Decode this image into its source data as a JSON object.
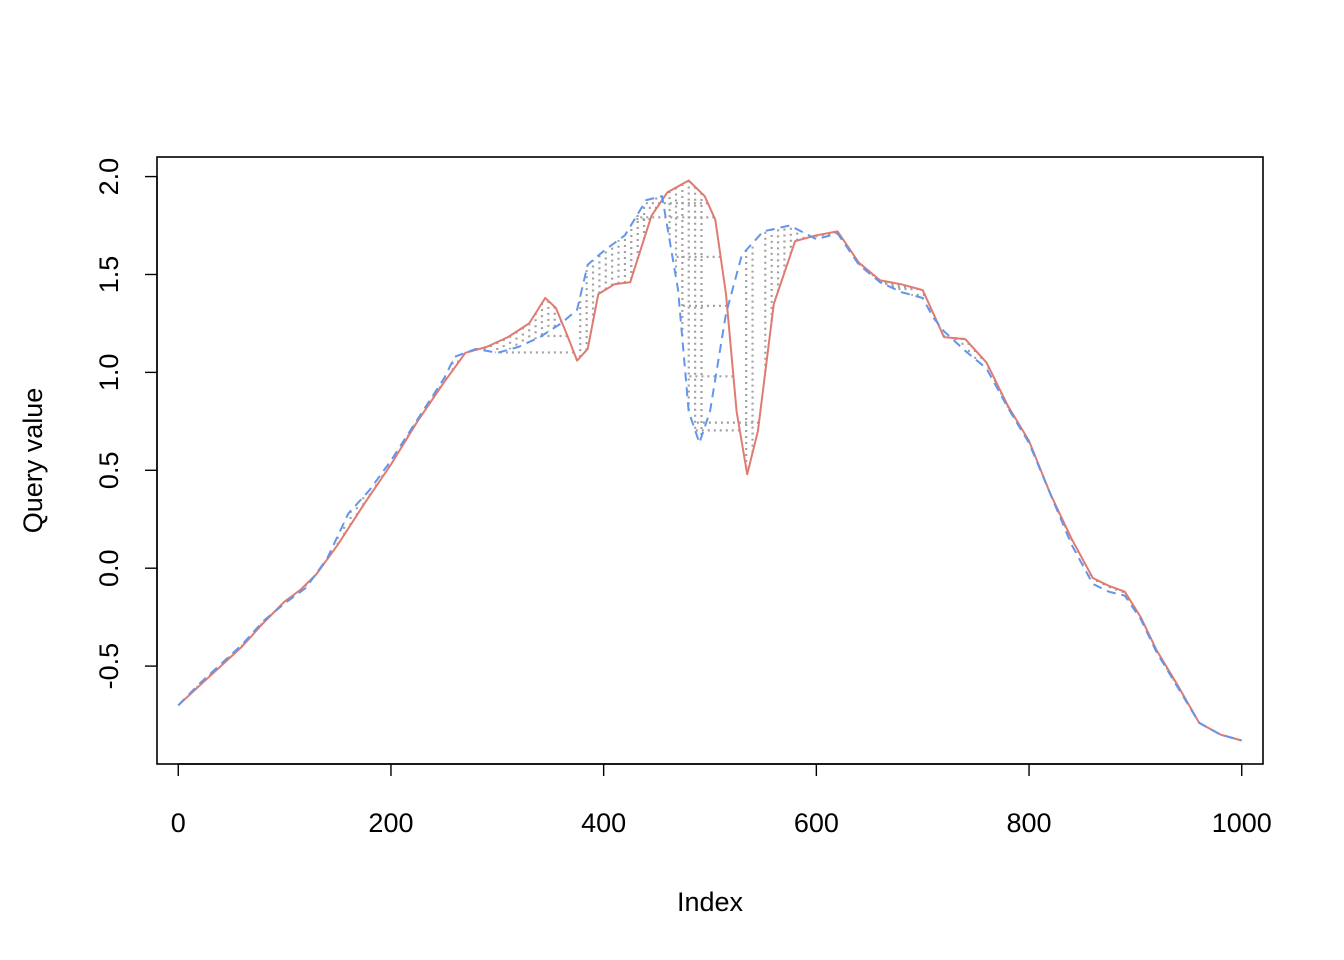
{
  "chart_data": {
    "type": "line",
    "title": "",
    "xlabel": "Index",
    "ylabel": "Query value",
    "xlim": [
      -20,
      1020
    ],
    "ylim": [
      -1.0,
      2.1
    ],
    "grid": false,
    "x_ticks": [
      0,
      200,
      400,
      600,
      800,
      1000
    ],
    "x_tick_labels": [
      "0",
      "200",
      "400",
      "600",
      "800",
      "1000"
    ],
    "y_ticks": [
      -0.5,
      0.0,
      0.5,
      1.0,
      1.5,
      2.0
    ],
    "y_tick_labels": [
      "-0.5",
      "0.0",
      "0.5",
      "1.0",
      "1.5",
      "2.0"
    ],
    "colors": {
      "series_a": "#e07b72",
      "series_b": "#6495ed",
      "warp": "#a0a0a0"
    },
    "series": [
      {
        "values": [
          [
            0,
            -0.7
          ],
          [
            20,
            -0.6
          ],
          [
            40,
            -0.5
          ],
          [
            60,
            -0.4
          ],
          [
            80,
            -0.28
          ],
          [
            100,
            -0.17
          ],
          [
            115,
            -0.11
          ],
          [
            130,
            -0.03
          ],
          [
            150,
            0.12
          ],
          [
            175,
            0.33
          ],
          [
            200,
            0.53
          ],
          [
            225,
            0.75
          ],
          [
            250,
            0.95
          ],
          [
            270,
            1.1
          ],
          [
            290,
            1.13
          ],
          [
            310,
            1.18
          ],
          [
            330,
            1.25
          ],
          [
            345,
            1.38
          ],
          [
            355,
            1.33
          ],
          [
            365,
            1.2
          ],
          [
            375,
            1.06
          ],
          [
            385,
            1.12
          ],
          [
            395,
            1.4
          ],
          [
            410,
            1.45
          ],
          [
            425,
            1.46
          ],
          [
            445,
            1.8
          ],
          [
            460,
            1.92
          ],
          [
            480,
            1.98
          ],
          [
            495,
            1.9
          ],
          [
            505,
            1.78
          ],
          [
            515,
            1.4
          ],
          [
            525,
            0.8
          ],
          [
            535,
            0.48
          ],
          [
            545,
            0.7
          ],
          [
            560,
            1.35
          ],
          [
            580,
            1.67
          ],
          [
            600,
            1.7
          ],
          [
            620,
            1.72
          ],
          [
            640,
            1.56
          ],
          [
            660,
            1.47
          ],
          [
            680,
            1.45
          ],
          [
            700,
            1.42
          ],
          [
            720,
            1.18
          ],
          [
            740,
            1.17
          ],
          [
            760,
            1.05
          ],
          [
            780,
            0.83
          ],
          [
            800,
            0.65
          ],
          [
            820,
            0.38
          ],
          [
            840,
            0.15
          ],
          [
            860,
            -0.05
          ],
          [
            875,
            -0.09
          ],
          [
            890,
            -0.12
          ],
          [
            905,
            -0.25
          ],
          [
            920,
            -0.42
          ],
          [
            940,
            -0.6
          ],
          [
            960,
            -0.79
          ],
          [
            980,
            -0.85
          ],
          [
            1000,
            -0.88
          ]
        ],
        "color": "#e07b72",
        "dash": "solid"
      },
      {
        "values": [
          [
            0,
            -0.7
          ],
          [
            20,
            -0.59
          ],
          [
            40,
            -0.49
          ],
          [
            60,
            -0.39
          ],
          [
            80,
            -0.27
          ],
          [
            100,
            -0.18
          ],
          [
            120,
            -0.1
          ],
          [
            140,
            0.05
          ],
          [
            160,
            0.28
          ],
          [
            180,
            0.4
          ],
          [
            200,
            0.55
          ],
          [
            225,
            0.76
          ],
          [
            250,
            0.97
          ],
          [
            260,
            1.08
          ],
          [
            280,
            1.12
          ],
          [
            300,
            1.1
          ],
          [
            320,
            1.13
          ],
          [
            340,
            1.18
          ],
          [
            360,
            1.25
          ],
          [
            375,
            1.32
          ],
          [
            385,
            1.55
          ],
          [
            400,
            1.62
          ],
          [
            420,
            1.7
          ],
          [
            440,
            1.88
          ],
          [
            455,
            1.9
          ],
          [
            470,
            1.42
          ],
          [
            480,
            0.8
          ],
          [
            490,
            0.64
          ],
          [
            500,
            0.8
          ],
          [
            515,
            1.3
          ],
          [
            530,
            1.6
          ],
          [
            550,
            1.72
          ],
          [
            575,
            1.75
          ],
          [
            600,
            1.68
          ],
          [
            620,
            1.71
          ],
          [
            640,
            1.55
          ],
          [
            660,
            1.46
          ],
          [
            680,
            1.41
          ],
          [
            700,
            1.38
          ],
          [
            710,
            1.28
          ],
          [
            720,
            1.21
          ],
          [
            740,
            1.11
          ],
          [
            760,
            1.02
          ],
          [
            780,
            0.82
          ],
          [
            800,
            0.64
          ],
          [
            820,
            0.38
          ],
          [
            840,
            0.12
          ],
          [
            860,
            -0.08
          ],
          [
            875,
            -0.12
          ],
          [
            890,
            -0.14
          ],
          [
            905,
            -0.26
          ],
          [
            920,
            -0.43
          ],
          [
            940,
            -0.61
          ],
          [
            960,
            -0.79
          ],
          [
            980,
            -0.85
          ],
          [
            1000,
            -0.88
          ]
        ],
        "color": "#6495ed",
        "dash": "dashed"
      }
    ]
  }
}
